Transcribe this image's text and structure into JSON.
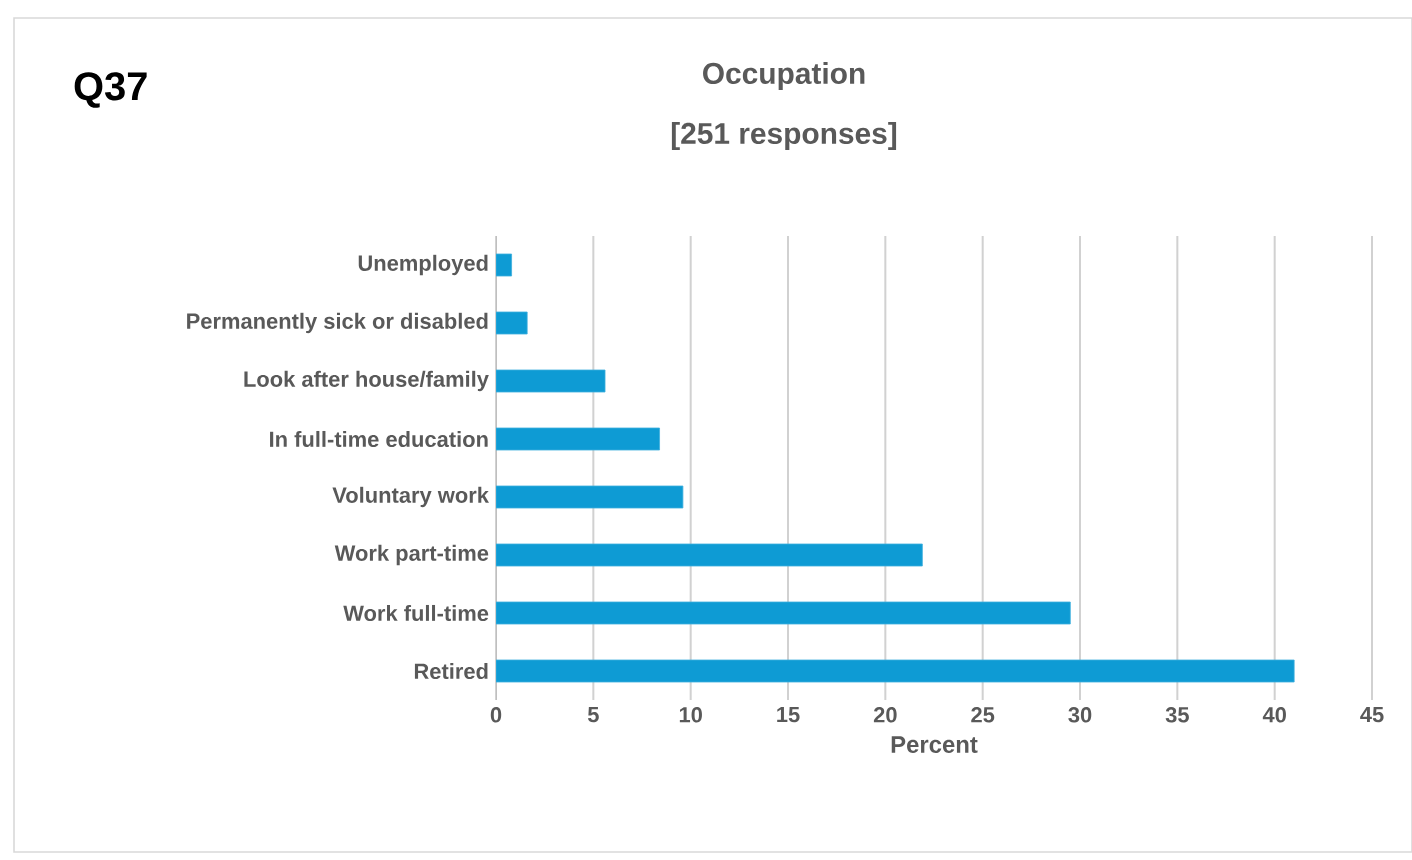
{
  "chart_data": {
    "type": "bar",
    "orientation": "horizontal",
    "title": "Occupation",
    "subtitle": "[251 responses]",
    "xlabel": "Percent",
    "annotations": [
      "Q37"
    ],
    "categories": [
      "Unemployed",
      "Permanently sick or disabled",
      "Look after house/family",
      "In full-time education",
      "Voluntary work",
      "Work part-time",
      "Work full-time",
      "Retired"
    ],
    "values": [
      0.8,
      1.6,
      5.6,
      8.4,
      9.6,
      21.9,
      29.5,
      41.0
    ],
    "color": "#0e9bd4",
    "xlim": [
      0,
      45
    ],
    "xticks": [
      0,
      5,
      10,
      15,
      20,
      25,
      30,
      35,
      40,
      45
    ],
    "grid": "x"
  }
}
